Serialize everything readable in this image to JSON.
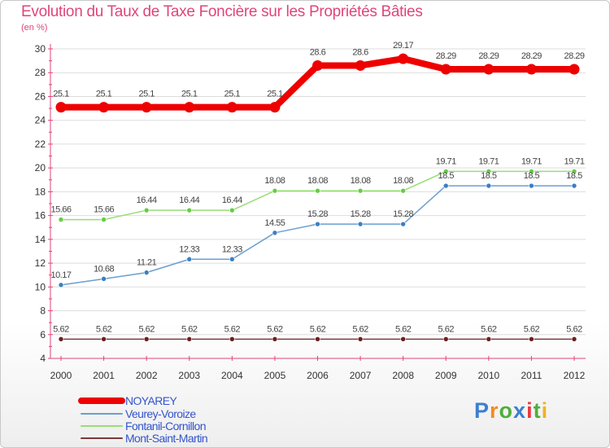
{
  "header": {
    "title": "Evolution du Taux de Taxe Foncière sur les Propriétés Bâties",
    "unit": "(en %)"
  },
  "logo": {
    "text": "Proxiti"
  },
  "colors": {
    "axis": "#e0457a",
    "grid": "#dddddd",
    "label": "#333333",
    "legend_text": "#3355cc",
    "logo_letters": [
      "#3b7fd1",
      "#f28b1e",
      "#4fae3c",
      "#3b7fd1",
      "#e8383d",
      "#4fae3c",
      "#f2b21e"
    ]
  },
  "chart_data": {
    "type": "line",
    "title": "Evolution du Taux de Taxe Foncière sur les Propriétés Bâties",
    "ylabel": "(en %)",
    "xlabel": "",
    "x": [
      "2000",
      "2001",
      "2002",
      "2003",
      "2004",
      "2005",
      "2006",
      "2007",
      "2008",
      "2009",
      "2010",
      "2011",
      "2012"
    ],
    "ylim": [
      4,
      30
    ],
    "yticks": [
      4,
      6,
      8,
      10,
      12,
      14,
      16,
      18,
      20,
      22,
      24,
      26,
      28,
      30
    ],
    "grid": "horizontal",
    "legend_position": "bottom-left",
    "series": [
      {
        "name": "NOYAREY",
        "color": "#ee0000",
        "marker_color": "#ee0000",
        "width": 8,
        "values": [
          25.1,
          25.1,
          25.1,
          25.1,
          25.1,
          25.1,
          28.6,
          28.6,
          29.17,
          28.29,
          28.29,
          28.29,
          28.29
        ],
        "labels": [
          "25.1",
          "25.1",
          "25.1",
          "25.1",
          "25.1",
          "25.1",
          "28.6",
          "28.6",
          "29.17",
          "28.29",
          "28.29",
          "28.29",
          "28.29"
        ]
      },
      {
        "name": "Veurey-Voroize",
        "color": "#6b9fd0",
        "marker_color": "#3a7fc4",
        "width": 1.5,
        "values": [
          10.17,
          10.68,
          11.21,
          12.33,
          12.33,
          14.55,
          15.28,
          15.28,
          15.28,
          18.5,
          18.5,
          18.5,
          18.5
        ],
        "labels": [
          "10.17",
          "10.68",
          "11.21",
          "12.33",
          "12.33",
          "14.55",
          "15.28",
          "15.28",
          "15.28",
          "18.5",
          "18.5",
          "18.5",
          "18.5"
        ]
      },
      {
        "name": "Fontanil-Cornillon",
        "color": "#99dd77",
        "marker_color": "#66cc44",
        "width": 1.5,
        "values": [
          15.66,
          15.66,
          16.44,
          16.44,
          16.44,
          18.08,
          18.08,
          18.08,
          18.08,
          19.71,
          19.71,
          19.71,
          19.71
        ],
        "labels": [
          "15.66",
          "15.66",
          "16.44",
          "16.44",
          "16.44",
          "18.08",
          "18.08",
          "18.08",
          "18.08",
          "19.71",
          "19.71",
          "19.71",
          "19.71"
        ]
      },
      {
        "name": "Mont-Saint-Martin",
        "color": "#7a3b3b",
        "marker_color": "#6a1f1f",
        "width": 1.5,
        "values": [
          5.62,
          5.62,
          5.62,
          5.62,
          5.62,
          5.62,
          5.62,
          5.62,
          5.62,
          5.62,
          5.62,
          5.62,
          5.62
        ],
        "labels": [
          "5.62",
          "5.62",
          "5.62",
          "5.62",
          "5.62",
          "5.62",
          "5.62",
          "5.62",
          "5.62",
          "5.62",
          "5.62",
          "5.62",
          "5.62"
        ]
      }
    ]
  }
}
